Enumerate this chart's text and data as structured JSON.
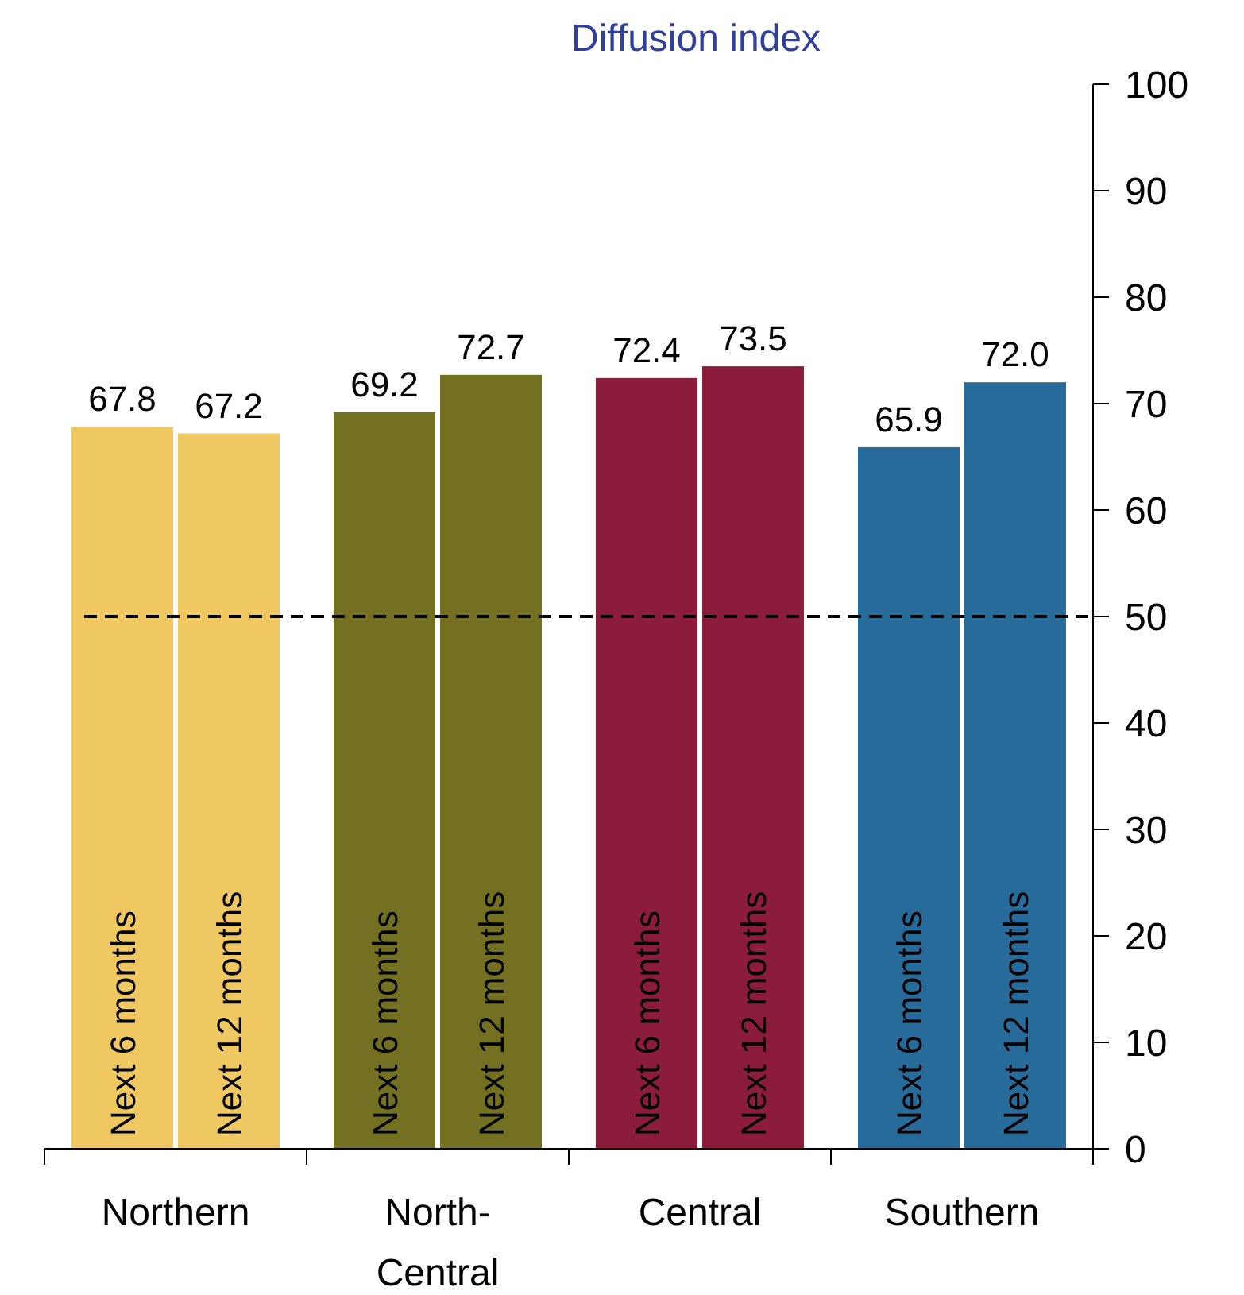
{
  "chart_data": {
    "type": "bar",
    "title": "Diffusion index",
    "categories": [
      "Northern",
      "North-Central",
      "Central",
      "Southern"
    ],
    "series": [
      {
        "name": "Next 6 months",
        "colors": [
          "#f0c862",
          "#737022",
          "#8c1c3c",
          "#266b9a"
        ],
        "values": [
          67.8,
          69.2,
          72.4,
          65.9
        ],
        "value_labels": [
          "67.8",
          "69.2",
          "72.4",
          "65.9"
        ]
      },
      {
        "name": "Next 12 months",
        "colors": [
          "#f0c862",
          "#737022",
          "#8c1c3c",
          "#266b9a"
        ],
        "values": [
          67.2,
          72.7,
          73.5,
          72.0
        ],
        "value_labels": [
          "67.2",
          "72.7",
          "73.5",
          "72.0"
        ]
      }
    ],
    "ylim": [
      0,
      100
    ],
    "yticks": [
      0,
      10,
      20,
      30,
      40,
      50,
      60,
      70,
      80,
      90,
      100
    ],
    "grid": false,
    "ref_lines": [
      {
        "axis": "y",
        "value": 50,
        "color": "#000000",
        "line_style": "dashed"
      }
    ]
  }
}
